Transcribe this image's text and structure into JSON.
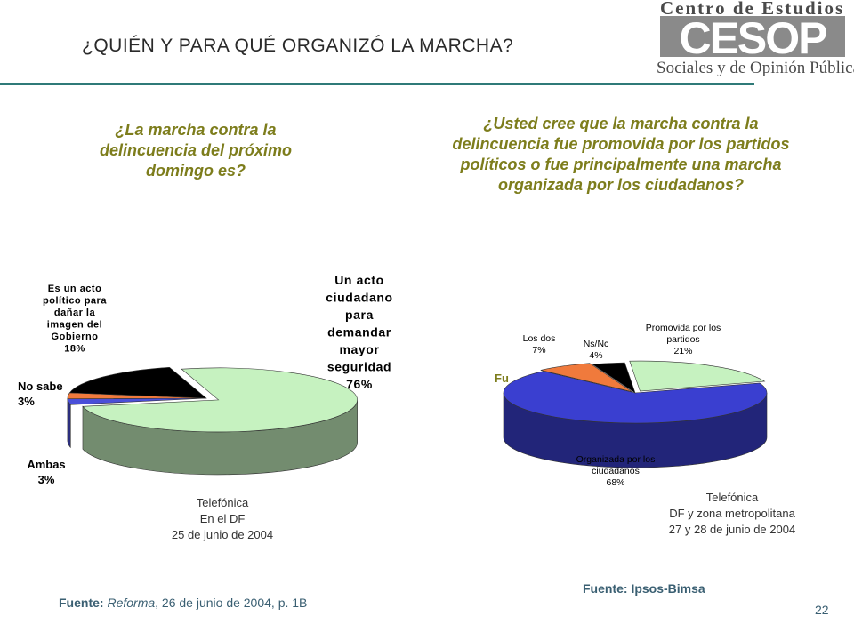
{
  "header": {
    "title": "¿QUIÉN Y PARA QUÉ ORGANIZÓ LA MARCHA?",
    "logo_top": "Centro de Estudios",
    "logo_letters": "CESOP",
    "logo_bottom": "Sociales y de Opinión Pública",
    "rule_color": "#2f7a78"
  },
  "chart_data": [
    {
      "type": "pie",
      "title": "¿La marcha contra la delincuencia del próximo domingo es?",
      "slices": [
        {
          "label": "Un acto ciudadano para demandar mayor seguridad",
          "value": 76,
          "display": "76%",
          "color": "#c6f2c0"
        },
        {
          "label": "Ambas",
          "value": 3,
          "display": "3%",
          "color": "#4a4fd8"
        },
        {
          "label": "No sabe",
          "value": 3,
          "display": "3%",
          "color": "#f07a3c"
        },
        {
          "label": "Es un acto político para dañar la imagen del Gobierno",
          "value": 18,
          "display": "18%",
          "color": "#000000"
        }
      ],
      "source_note": [
        "Telefónica",
        "En el DF",
        "25 de junio de 2004"
      ]
    },
    {
      "type": "pie",
      "title": "¿Usted cree que la marcha contra la delincuencia fue promovida por los partidos políticos o fue principalmente una marcha organizada por los ciudadanos?",
      "slices": [
        {
          "label": "Promovida por los partidos",
          "value": 21,
          "display": "21%",
          "color": "#c6f2c0"
        },
        {
          "label": "Organizada por los ciudadanos",
          "value": 68,
          "display": "68%",
          "color": "#3a3fd0"
        },
        {
          "label": "Los dos",
          "value": 7,
          "display": "7%",
          "color": "#f07a3c"
        },
        {
          "label": "Ns/Nc",
          "value": 4,
          "display": "4%",
          "color": "#000000"
        }
      ],
      "source_note": [
        "Telefónica",
        "DF y zona metropolitana",
        "27 y 28 de junio de 2004"
      ]
    }
  ],
  "labels": {
    "left": {
      "acto": [
        "Un acto",
        "ciudadano",
        "para",
        "demandar",
        "mayor",
        "seguridad",
        "76%"
      ],
      "politico": [
        "Es un acto",
        "político para",
        "dañar la",
        "imagen del",
        "Gobierno",
        "18%"
      ],
      "nosabe": [
        "No sabe",
        "3%"
      ],
      "ambas": [
        "Ambas",
        "3%"
      ]
    },
    "right": {
      "promovida": [
        "Promovida por los",
        "partidos",
        "21%"
      ],
      "losdos": [
        "Los dos",
        "7%"
      ],
      "nsnc": [
        "Ns/Nc",
        "4%"
      ],
      "organizada": [
        "Organizada por los",
        "ciudadanos",
        "68%"
      ],
      "fragment": "Fu"
    }
  },
  "footer": {
    "left_bold": "Fuente:",
    "left_italic": "Reforma",
    "left_rest": ", 26 de junio de 2004, p. 1B",
    "right": "Fuente: Ipsos-Bimsa",
    "page_number": "22"
  }
}
